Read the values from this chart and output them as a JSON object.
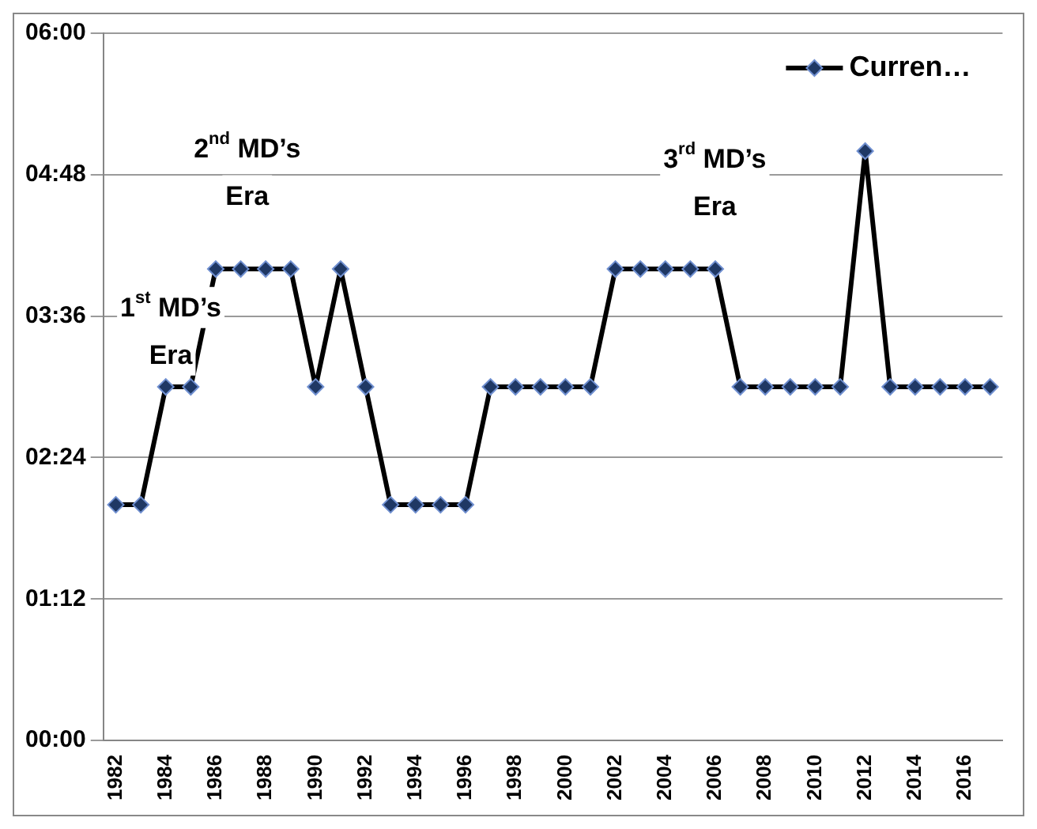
{
  "chart_data": {
    "type": "line",
    "categories": [
      "1982",
      null,
      "1984",
      null,
      "1986",
      null,
      "1988",
      null,
      "1990",
      null,
      "1992",
      null,
      "1994",
      null,
      "1996",
      null,
      "1998",
      null,
      "2000",
      null,
      "2002",
      null,
      "2004",
      null,
      "2006",
      null,
      "2008",
      null,
      "2010",
      null,
      "2012",
      null,
      "2014",
      null,
      "2016",
      null
    ],
    "series": [
      {
        "name": "Curren…",
        "color": "#1f3864",
        "values": [
          2,
          2,
          3,
          3,
          4,
          4,
          4,
          4,
          3,
          4,
          3,
          2,
          2,
          2,
          2,
          3,
          3,
          3,
          3,
          3,
          4,
          4,
          4,
          4,
          4,
          3,
          3,
          3,
          3,
          3,
          5,
          3,
          3,
          3,
          3,
          3
        ]
      }
    ],
    "ylim": [
      0,
      6
    ],
    "yticks": [
      {
        "value": 0,
        "label": "00:00"
      },
      {
        "value": 1.2,
        "label": "01:12"
      },
      {
        "value": 2.4,
        "label": "02:24"
      },
      {
        "value": 3.6,
        "label": "03:36"
      },
      {
        "value": 4.8,
        "label": "04:48"
      },
      {
        "value": 6,
        "label": "06:00"
      }
    ],
    "annotations": [
      "1$^{st}$ MD’s\nEra",
      "2$^{nd}$ MD’s\nEra",
      "3$^{rd}$ MD’s\nEra"
    ],
    "grid": "y",
    "legend": "top right",
    "marker": "diamond",
    "line_style": "solid"
  }
}
